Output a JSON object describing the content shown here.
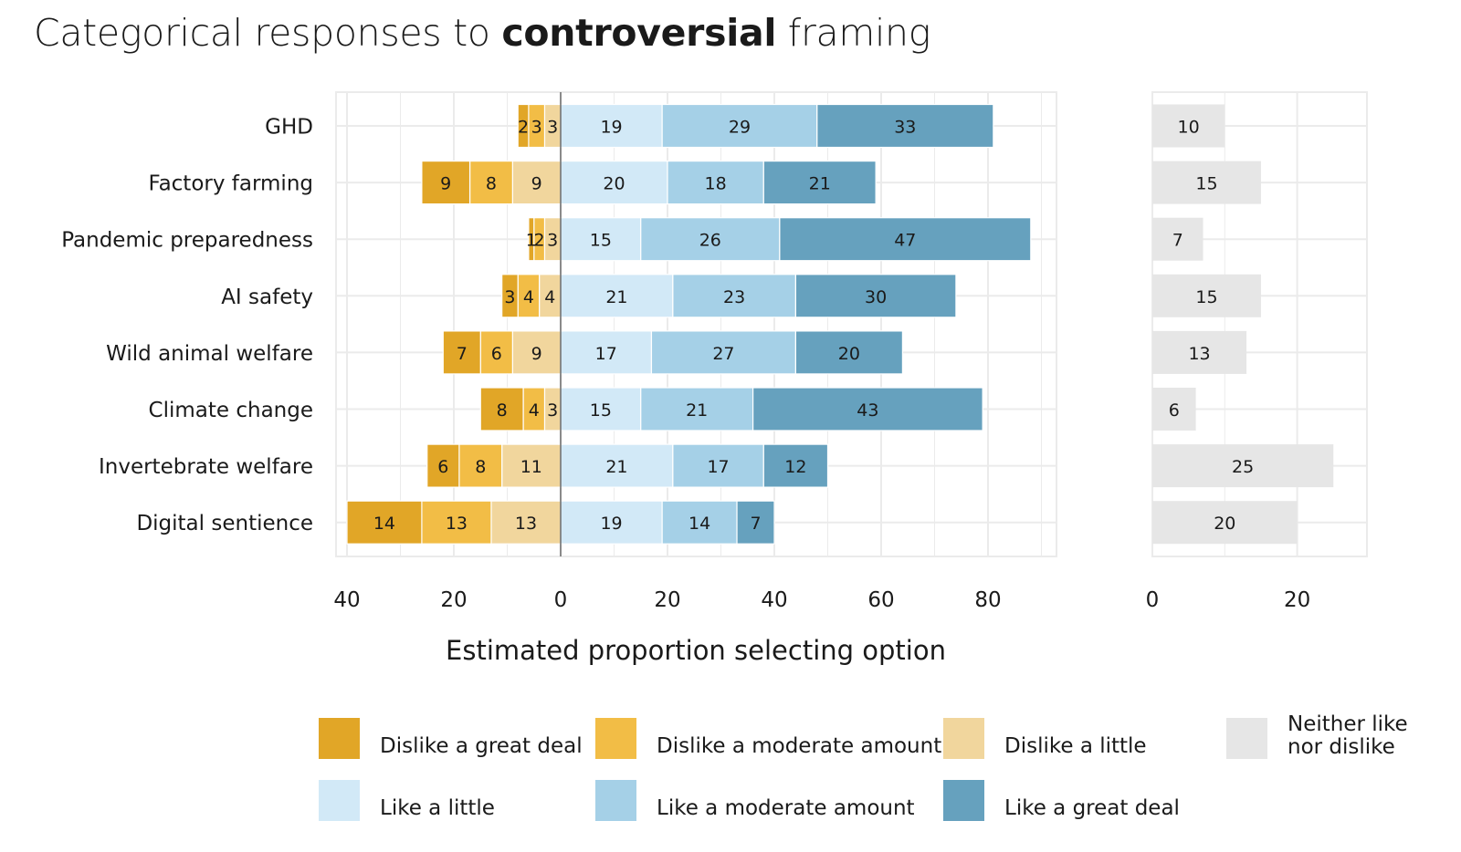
{
  "title": {
    "prefix": "Categorical responses to ",
    "bold": "controversial",
    "suffix": " framing"
  },
  "chart_data": {
    "type": "bar",
    "orientation": "horizontal",
    "stacked": "diverging",
    "title": "Categorical responses to controversial framing",
    "xlabel": "Estimated proportion selecting option",
    "ylabel": "",
    "categories": [
      "GHD",
      "Factory farming",
      "Pandemic preparedness",
      "AI safety",
      "Wild animal welfare",
      "Climate change",
      "Invertebrate welfare",
      "Digital sentience"
    ],
    "series": [
      {
        "name": "Dislike a great deal",
        "color": "#e1a627",
        "side": "negative",
        "values": [
          2,
          9,
          1,
          3,
          7,
          8,
          6,
          14
        ]
      },
      {
        "name": "Dislike a moderate amount",
        "color": "#f2bd46",
        "side": "negative",
        "values": [
          3,
          8,
          2,
          4,
          6,
          4,
          8,
          13
        ]
      },
      {
        "name": "Dislike a little",
        "color": "#f1d69d",
        "side": "negative",
        "values": [
          3,
          9,
          3,
          4,
          9,
          3,
          11,
          13
        ]
      },
      {
        "name": "Like a little",
        "color": "#d2e9f7",
        "side": "positive",
        "values": [
          19,
          20,
          15,
          21,
          17,
          15,
          21,
          19
        ]
      },
      {
        "name": "Like a moderate amount",
        "color": "#a5d0e7",
        "side": "positive",
        "values": [
          29,
          18,
          26,
          23,
          27,
          21,
          17,
          14
        ]
      },
      {
        "name": "Like a great deal",
        "color": "#66a1be",
        "side": "positive",
        "values": [
          33,
          21,
          47,
          30,
          20,
          43,
          12,
          7
        ]
      },
      {
        "name": "Neither like nor dislike",
        "color": "#e6e6e6",
        "side": "separate",
        "values": [
          10,
          15,
          7,
          15,
          13,
          6,
          25,
          20
        ]
      }
    ],
    "main_xlim": [
      -42,
      93
    ],
    "main_ticks": [
      -40,
      -20,
      0,
      20,
      40,
      60,
      80
    ],
    "main_tick_labels": [
      "40",
      "20",
      "0",
      "20",
      "40",
      "60",
      "80"
    ],
    "side_xlim": [
      0,
      30
    ],
    "side_ticks": [
      0,
      20
    ],
    "side_tick_labels": [
      "0",
      "20"
    ],
    "grid": true,
    "legend_position": "bottom"
  },
  "legend": {
    "items": [
      {
        "label": "Dislike a great deal",
        "color": "#e1a627"
      },
      {
        "label": "Dislike a moderate amount",
        "color": "#f2bd46"
      },
      {
        "label": "Dislike a little",
        "color": "#f1d69d"
      },
      {
        "label": "Neither like nor dislike",
        "label_lines": [
          "Neither like",
          "nor dislike"
        ],
        "color": "#e6e6e6"
      },
      {
        "label": "Like a little",
        "color": "#d2e9f7"
      },
      {
        "label": "Like a moderate amount",
        "color": "#a5d0e7"
      },
      {
        "label": "Like a great deal",
        "color": "#66a1be"
      }
    ]
  }
}
